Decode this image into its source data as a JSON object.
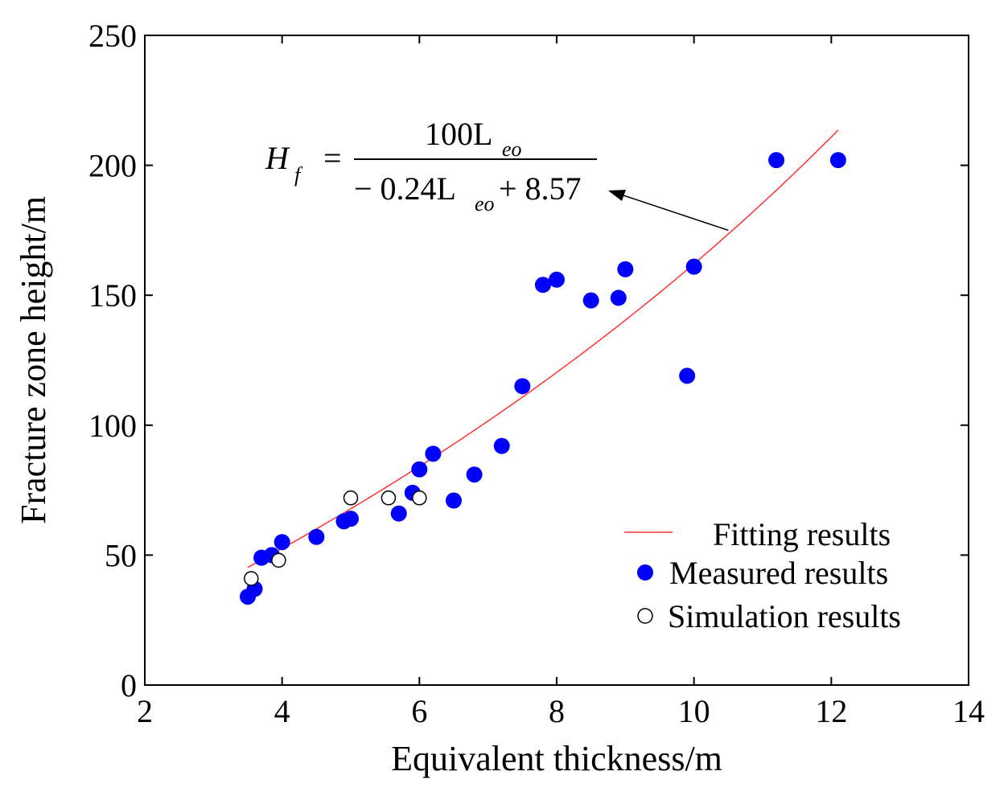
{
  "chart_data": {
    "type": "scatter",
    "title": "",
    "xlabel": "Equivalent thickness/m",
    "ylabel": "Fracture zone height/m",
    "xlim": [
      2,
      14
    ],
    "ylim": [
      0,
      250
    ],
    "xticks": [
      2,
      4,
      6,
      8,
      10,
      12,
      14
    ],
    "yticks": [
      0,
      50,
      100,
      150,
      200,
      250
    ],
    "grid": false,
    "legend_position": "lower-right",
    "colors": {
      "fit": "#ff3333",
      "measured": "#0000ff",
      "simulation_edge": "#000000",
      "simulation_fill": "#ffffff"
    },
    "series": [
      {
        "name": "Fitting results",
        "kind": "line",
        "formula": "100*L/(-0.24*L+8.57)",
        "x_range": [
          3.5,
          12.1
        ]
      },
      {
        "name": "Measured results",
        "kind": "scatter-filled",
        "points": [
          [
            3.5,
            34
          ],
          [
            3.6,
            37
          ],
          [
            3.7,
            49
          ],
          [
            3.85,
            50
          ],
          [
            4.0,
            55
          ],
          [
            4.5,
            57
          ],
          [
            4.9,
            63
          ],
          [
            5.0,
            64
          ],
          [
            5.7,
            66
          ],
          [
            5.9,
            74
          ],
          [
            6.0,
            83
          ],
          [
            6.2,
            89
          ],
          [
            6.5,
            71
          ],
          [
            6.8,
            81
          ],
          [
            7.2,
            92
          ],
          [
            7.5,
            115
          ],
          [
            7.8,
            154
          ],
          [
            8.0,
            156
          ],
          [
            8.5,
            148
          ],
          [
            8.9,
            149
          ],
          [
            9.0,
            160
          ],
          [
            9.9,
            119
          ],
          [
            10.0,
            161
          ],
          [
            11.2,
            202
          ],
          [
            12.1,
            202
          ]
        ]
      },
      {
        "name": "Simulation results",
        "kind": "scatter-hollow",
        "points": [
          [
            3.55,
            41
          ],
          [
            3.95,
            48
          ],
          [
            5.0,
            72
          ],
          [
            5.55,
            72
          ],
          [
            6.0,
            72
          ]
        ]
      }
    ],
    "annotation": {
      "lhs_main": "H",
      "lhs_sub": "f",
      "equals": "=",
      "numerator_main": "100L",
      "numerator_sub": "eo",
      "denominator_a": "− 0.24L",
      "denominator_sub": "eo",
      "denominator_b": "+ 8.57",
      "arrow_target_data": [
        10.5,
        175
      ]
    }
  }
}
